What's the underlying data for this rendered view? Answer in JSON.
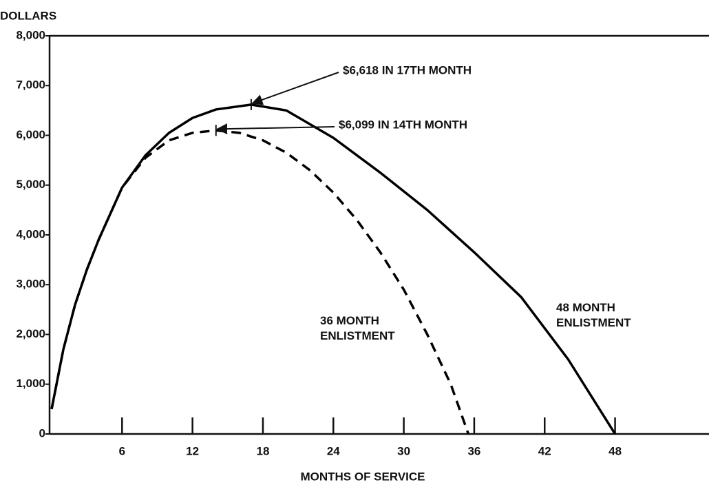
{
  "chart_data": {
    "type": "line",
    "y_label": "DOLLARS",
    "x_label": "MONTHS OF SERVICE",
    "xlim": [
      0,
      56
    ],
    "ylim": [
      0,
      8000
    ],
    "xticks": [
      6,
      12,
      18,
      24,
      30,
      36,
      42,
      48
    ],
    "yticks": [
      0,
      {
        "value": 1000,
        "label": "1,000"
      },
      {
        "value": 2000,
        "label": "2,000"
      },
      {
        "value": 3000,
        "label": "3,000"
      },
      {
        "value": 4000,
        "label": "4,000"
      },
      {
        "value": 5000,
        "label": "5,000"
      },
      {
        "value": 6000,
        "label": "6,000"
      },
      {
        "value": 7000,
        "label": "7,000"
      },
      {
        "value": 8000,
        "label": "8,000"
      }
    ],
    "series": [
      {
        "name": "48 MONTH ENLISTMENT",
        "color": "#000000",
        "dash": false,
        "x": [
          0,
          1,
          2,
          3,
          4,
          6,
          8,
          10,
          12,
          14,
          17,
          20,
          24,
          28,
          32,
          36,
          40,
          44,
          48
        ],
        "values": [
          500,
          1700,
          2600,
          3300,
          3900,
          4950,
          5600,
          6050,
          6350,
          6520,
          6618,
          6500,
          5950,
          5250,
          4500,
          3650,
          2750,
          1500,
          0
        ]
      },
      {
        "name": "36 MONTH ENLISTMENT",
        "color": "#000000",
        "dash": true,
        "x": [
          0,
          1,
          2,
          3,
          4,
          6,
          8,
          10,
          12,
          14,
          16,
          18,
          20,
          22,
          24,
          26,
          28,
          30,
          32,
          34,
          35.5
        ],
        "values": [
          500,
          1700,
          2600,
          3300,
          3900,
          4950,
          5550,
          5900,
          6050,
          6099,
          6050,
          5900,
          5650,
          5300,
          4850,
          4300,
          3650,
          2900,
          2000,
          1000,
          0
        ]
      }
    ],
    "annotations": [
      {
        "text": "$6,618 IN 17TH MONTH",
        "x": 17,
        "y": 6618
      },
      {
        "text": "$6,099 IN 14TH MONTH",
        "x": 14,
        "y": 6099
      }
    ]
  }
}
